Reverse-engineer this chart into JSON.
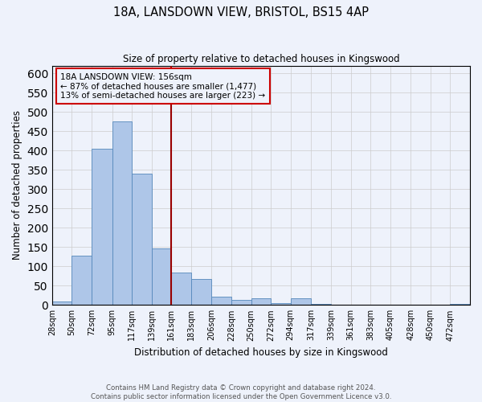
{
  "title": "18A, LANSDOWN VIEW, BRISTOL, BS15 4AP",
  "subtitle": "Size of property relative to detached houses in Kingswood",
  "xlabel": "Distribution of detached houses by size in Kingswood",
  "ylabel": "Number of detached properties",
  "bin_labels": [
    "28sqm",
    "50sqm",
    "72sqm",
    "95sqm",
    "117sqm",
    "139sqm",
    "161sqm",
    "183sqm",
    "206sqm",
    "228sqm",
    "250sqm",
    "272sqm",
    "294sqm",
    "317sqm",
    "339sqm",
    "361sqm",
    "383sqm",
    "405sqm",
    "428sqm",
    "450sqm",
    "472sqm"
  ],
  "bin_edges": [
    28,
    50,
    72,
    95,
    117,
    139,
    161,
    183,
    206,
    228,
    250,
    272,
    294,
    317,
    339,
    361,
    383,
    405,
    428,
    450,
    472
  ],
  "bar_heights": [
    8,
    127,
    405,
    475,
    340,
    147,
    85,
    68,
    22,
    13,
    17,
    5,
    17,
    2,
    0,
    0,
    0,
    0,
    0,
    0,
    3
  ],
  "bar_color": "#aec6e8",
  "bar_edge_color": "#5588bb",
  "vline_x": 161,
  "vline_color": "#990000",
  "annotation_line1": "18A LANSDOWN VIEW: 156sqm",
  "annotation_line2": "← 87% of detached houses are smaller (1,477)",
  "annotation_line3": "13% of semi-detached houses are larger (223) →",
  "annotation_box_color": "#cc0000",
  "ylim": [
    0,
    620
  ],
  "yticks": [
    0,
    50,
    100,
    150,
    200,
    250,
    300,
    350,
    400,
    450,
    500,
    550,
    600
  ],
  "grid_color": "#cccccc",
  "background_color": "#eef2fb",
  "footer_line1": "Contains HM Land Registry data © Crown copyright and database right 2024.",
  "footer_line2": "Contains public sector information licensed under the Open Government Licence v3.0."
}
